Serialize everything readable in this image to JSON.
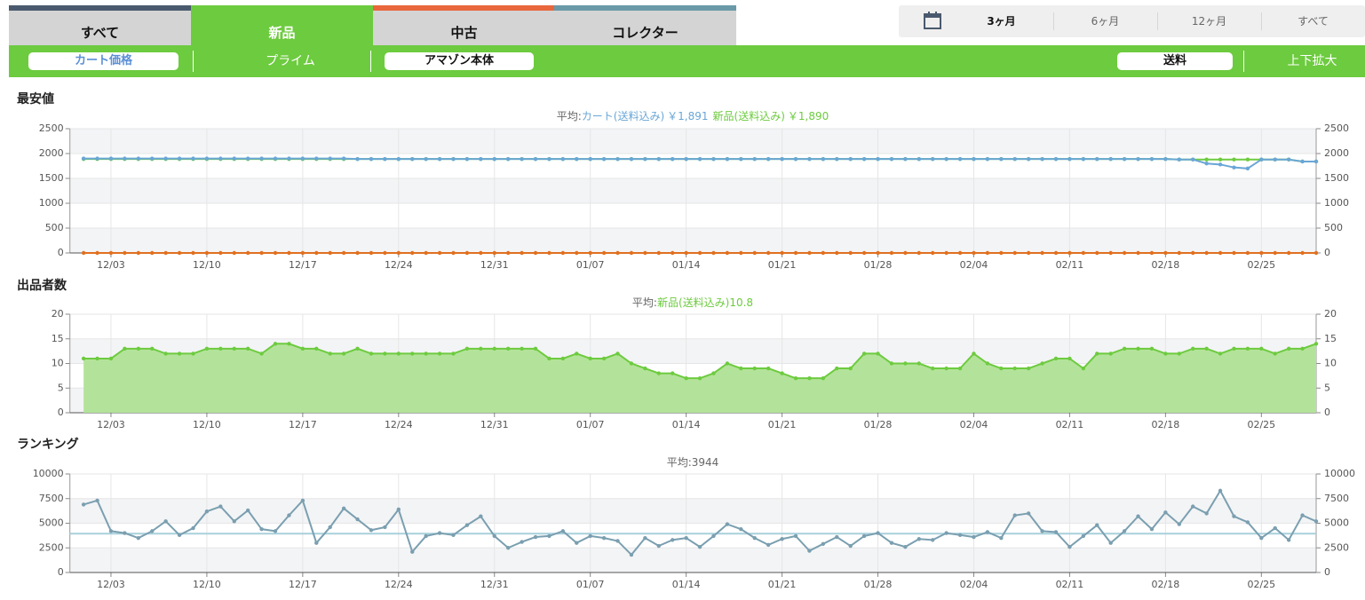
{
  "tabs": [
    "すべて",
    "新品",
    "中古",
    "コレクター"
  ],
  "periods": [
    "3ヶ月",
    "6ヶ月",
    "12ヶ月",
    "すべて"
  ],
  "filters": [
    "カート価格",
    "プライム",
    "アマゾン本体",
    "送料",
    "上下拡大"
  ],
  "chart_data": [
    {
      "type": "line",
      "title": "最安値",
      "average_prefix": "平均:",
      "categories": [
        null,
        null,
        null,
        "12/03",
        null,
        null,
        null,
        null,
        null,
        null,
        "12/10",
        null,
        null,
        null,
        null,
        null,
        null,
        "12/17",
        null,
        null,
        null,
        null,
        null,
        null,
        "12/24",
        null,
        null,
        null,
        null,
        null,
        null,
        "12/31",
        null,
        null,
        null,
        null,
        null,
        null,
        "01/07",
        null,
        null,
        null,
        null,
        null,
        null,
        "01/14",
        null,
        null,
        null,
        null,
        null,
        null,
        "01/21",
        null,
        null,
        null,
        null,
        null,
        null,
        "01/28",
        null,
        null,
        null,
        null,
        null,
        null,
        "02/04",
        null,
        null,
        null,
        null,
        null,
        null,
        "02/11",
        null,
        null,
        null,
        null,
        null,
        null,
        "02/18",
        null,
        null,
        null,
        null,
        null,
        null,
        "02/25",
        null,
        null,
        null,
        null
      ],
      "series": [
        {
          "name": "カート(送料込み)",
          "average_label": "￥1,891",
          "color": "#6aa6d6",
          "values": [
            null,
            1900,
            1900,
            1900,
            1900,
            1900,
            1900,
            1900,
            1900,
            1900,
            1900,
            1900,
            1900,
            1900,
            1900,
            1900,
            1900,
            1900,
            1900,
            1900,
            1900,
            1890,
            1890,
            1890,
            1890,
            1890,
            1890,
            1890,
            1890,
            1890,
            1890,
            1890,
            1890,
            1890,
            1890,
            1890,
            1890,
            1890,
            1890,
            1890,
            1890,
            1890,
            1890,
            1890,
            1890,
            1890,
            1890,
            1890,
            1890,
            1890,
            1890,
            1890,
            1890,
            1890,
            1890,
            1890,
            1890,
            1890,
            1890,
            1890,
            1890,
            1890,
            1890,
            1890,
            1890,
            1890,
            1890,
            1890,
            1890,
            1890,
            1890,
            1890,
            1890,
            1890,
            1890,
            1890,
            1890,
            1890,
            1890,
            1890,
            1890,
            1880,
            1880,
            1800,
            1780,
            1720,
            1700,
            1880,
            1880,
            1880,
            1840,
            1840
          ]
        },
        {
          "name": "新品(送料込み)",
          "average_label": "￥1,890",
          "color": "#6dcb3f",
          "values": [
            null,
            1890,
            1890,
            1890,
            1890,
            1890,
            1890,
            1890,
            1890,
            1890,
            1890,
            1890,
            1890,
            1890,
            1890,
            1890,
            1890,
            1890,
            1890,
            1890,
            1890,
            1890,
            1890,
            1890,
            1890,
            1890,
            1890,
            1890,
            1890,
            1890,
            1890,
            1890,
            1890,
            1890,
            1890,
            1890,
            1890,
            1890,
            1890,
            1890,
            1890,
            1890,
            1890,
            1890,
            1890,
            1890,
            1890,
            1890,
            1890,
            1890,
            1890,
            1890,
            1890,
            1890,
            1890,
            1890,
            1890,
            1890,
            1890,
            1890,
            1890,
            1890,
            1890,
            1890,
            1890,
            1890,
            1890,
            1890,
            1890,
            1890,
            1890,
            1890,
            1890,
            1890,
            1890,
            1890,
            1890,
            1890,
            1890,
            1890,
            1890,
            1880,
            1880,
            1880,
            1880,
            1880,
            1880,
            1880,
            1880,
            1880,
            1840,
            1840
          ]
        },
        {
          "color": "#e07020",
          "values": [
            null,
            0,
            0,
            0,
            0,
            0,
            0,
            0,
            0,
            0,
            0,
            0,
            0,
            0,
            0,
            0,
            0,
            0,
            0,
            0,
            0,
            0,
            0,
            0,
            0,
            0,
            0,
            0,
            0,
            0,
            0,
            0,
            0,
            0,
            0,
            0,
            0,
            0,
            0,
            0,
            0,
            0,
            0,
            0,
            0,
            0,
            0,
            0,
            0,
            0,
            0,
            0,
            0,
            0,
            0,
            0,
            0,
            0,
            0,
            0,
            0,
            0,
            0,
            0,
            0,
            0,
            0,
            0,
            0,
            0,
            0,
            0,
            0,
            0,
            0,
            0,
            0,
            0,
            0,
            0,
            0,
            0,
            0,
            0,
            0,
            0,
            0,
            0,
            0,
            0,
            0,
            0
          ]
        }
      ],
      "ylim": [
        0,
        2500
      ],
      "yticks": [
        0,
        500,
        1000,
        1500,
        2000,
        2500
      ],
      "y2lim": [
        0,
        2500
      ],
      "y2ticks": [
        0,
        500,
        1000,
        1500,
        2000,
        2500
      ],
      "grid": true
    },
    {
      "type": "area",
      "title": "出品者数",
      "average_prefix": "平均:",
      "categories": [
        null,
        null,
        null,
        "12/03",
        null,
        null,
        null,
        null,
        null,
        null,
        "12/10",
        null,
        null,
        null,
        null,
        null,
        null,
        "12/17",
        null,
        null,
        null,
        null,
        null,
        null,
        "12/24",
        null,
        null,
        null,
        null,
        null,
        null,
        "12/31",
        null,
        null,
        null,
        null,
        null,
        null,
        "01/07",
        null,
        null,
        null,
        null,
        null,
        null,
        "01/14",
        null,
        null,
        null,
        null,
        null,
        null,
        "01/21",
        null,
        null,
        null,
        null,
        null,
        null,
        "01/28",
        null,
        null,
        null,
        null,
        null,
        null,
        "02/04",
        null,
        null,
        null,
        null,
        null,
        null,
        "02/11",
        null,
        null,
        null,
        null,
        null,
        null,
        "02/18",
        null,
        null,
        null,
        null,
        null,
        null,
        "02/25",
        null,
        null,
        null,
        null
      ],
      "series": [
        {
          "name": "新品(送料込み)",
          "average": 10.8,
          "color": "#6dcb3f",
          "fill": "#b3e39a",
          "values": [
            null,
            11,
            11,
            11,
            13,
            13,
            13,
            12,
            12,
            12,
            13,
            13,
            13,
            13,
            12,
            14,
            14,
            13,
            13,
            12,
            12,
            13,
            12,
            12,
            12,
            12,
            12,
            12,
            12,
            13,
            13,
            13,
            13,
            13,
            13,
            11,
            11,
            12,
            11,
            11,
            12,
            10,
            9,
            8,
            8,
            7,
            7,
            8,
            10,
            9,
            9,
            9,
            8,
            7,
            7,
            7,
            9,
            9,
            12,
            12,
            10,
            10,
            10,
            9,
            9,
            9,
            12,
            10,
            9,
            9,
            9,
            10,
            11,
            11,
            9,
            12,
            12,
            13,
            13,
            13,
            12,
            12,
            13,
            13,
            12,
            13,
            13,
            13,
            12,
            13,
            13,
            14
          ]
        }
      ],
      "ylim": [
        0,
        20
      ],
      "yticks": [
        0,
        5,
        10,
        15,
        20
      ],
      "y2lim": [
        0,
        20
      ],
      "y2ticks": [
        0,
        5,
        10,
        15,
        20
      ],
      "grid": true
    },
    {
      "type": "line",
      "title": "ランキング",
      "average_prefix": "平均:",
      "average": 3944,
      "average_color": "#a8d0dc",
      "categories": [
        null,
        null,
        null,
        "12/03",
        null,
        null,
        null,
        null,
        null,
        null,
        "12/10",
        null,
        null,
        null,
        null,
        null,
        null,
        "12/17",
        null,
        null,
        null,
        null,
        null,
        null,
        "12/24",
        null,
        null,
        null,
        null,
        null,
        null,
        "12/31",
        null,
        null,
        null,
        null,
        null,
        null,
        "01/07",
        null,
        null,
        null,
        null,
        null,
        null,
        "01/14",
        null,
        null,
        null,
        null,
        null,
        null,
        "01/21",
        null,
        null,
        null,
        null,
        null,
        null,
        "01/28",
        null,
        null,
        null,
        null,
        null,
        null,
        "02/04",
        null,
        null,
        null,
        null,
        null,
        null,
        "02/11",
        null,
        null,
        null,
        null,
        null,
        null,
        "02/18",
        null,
        null,
        null,
        null,
        null,
        null,
        "02/25",
        null,
        null,
        null,
        null
      ],
      "series": [
        {
          "color": "#7a9fb0",
          "values": [
            null,
            6900,
            7300,
            4200,
            4000,
            3500,
            4200,
            5200,
            3800,
            4500,
            6200,
            6700,
            5200,
            6300,
            4400,
            4200,
            5800,
            7300,
            3000,
            4600,
            6500,
            5400,
            4300,
            4600,
            6400,
            2100,
            3700,
            4000,
            3800,
            4800,
            5700,
            3700,
            2500,
            3100,
            3600,
            3700,
            4200,
            3000,
            3700,
            3500,
            3200,
            1800,
            3500,
            2700,
            3300,
            3500,
            2600,
            3700,
            4900,
            4400,
            3500,
            2800,
            3400,
            3700,
            2200,
            2900,
            3600,
            2700,
            3700,
            4000,
            3000,
            2600,
            3400,
            3300,
            4000,
            3800,
            3600,
            4100,
            3500,
            5800,
            6000,
            4200,
            4100,
            2600,
            3700,
            4800,
            3000,
            4200,
            5700,
            4400,
            6100,
            4900,
            6700,
            6000,
            8300,
            5700,
            5100,
            3500,
            4500,
            3300,
            5800,
            5200
          ]
        }
      ],
      "ylim": [
        0,
        10000
      ],
      "yticks": [
        0,
        2500,
        5000,
        7500,
        10000
      ],
      "y2lim": [
        0,
        10000
      ],
      "y2ticks": [
        0,
        2500,
        5000,
        7500,
        10000
      ],
      "grid": true
    }
  ]
}
